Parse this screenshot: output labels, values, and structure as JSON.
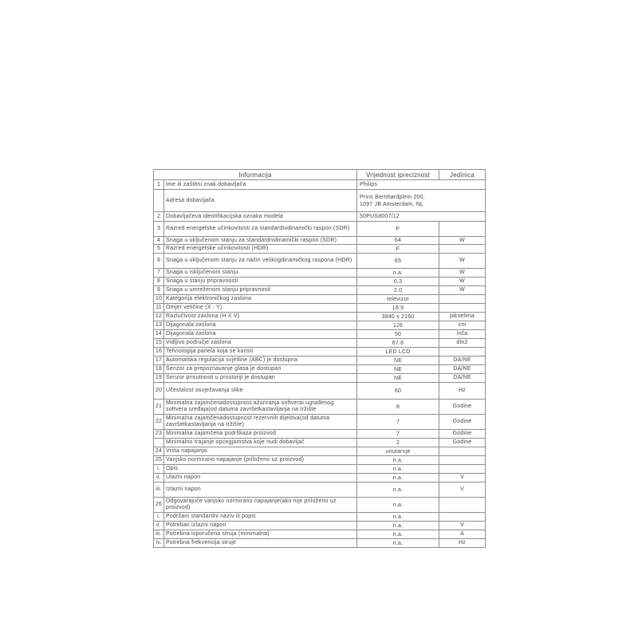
{
  "table": {
    "headers": {
      "info": "Informacija",
      "value": "Vrijednost ipreciznost",
      "unit": "Jedinica"
    },
    "rows": [
      {
        "num": "1",
        "label": "Ime ili zaštitni znak dobavljača",
        "value": "Philips",
        "unit": "",
        "merged": true
      },
      {
        "num": "",
        "label": "Adresa dobavljača",
        "value": "Prins Bernhardplein 200,\n1097 JB Amsterdam, NL",
        "unit": "",
        "merged": true
      },
      {
        "num": "2",
        "label": "Dobavljačeva identifikacijska oznaka modela",
        "value": "50PUS8007/12",
        "unit": "",
        "merged": true
      },
      {
        "num": "3",
        "label": "Razred energetske učinkovitosti za standardnidinamički raspon (SDR)",
        "value": "F",
        "unit": ""
      },
      {
        "num": "4",
        "label": "Snaga u uključenom stanju za standardnidinamički raspon (SDR)",
        "value": "64",
        "unit": "W"
      },
      {
        "num": "5",
        "label": "Razred energetske učinkovitosti (HDR)",
        "value": "F",
        "unit": ""
      },
      {
        "num": "6",
        "label": "Snaga u uključenom stanju za način velikogdinamičkog raspona (HDR)",
        "value": "65",
        "unit": "W"
      },
      {
        "num": "7",
        "label": "Snaga u isključenom stanju",
        "value": "n.a.",
        "unit": "W"
      },
      {
        "num": "8",
        "label": "Snaga u stanju pripravnosti",
        "value": "0.3",
        "unit": "W"
      },
      {
        "num": "9",
        "label": "Snaga u umreženom stanju pripravnosti",
        "value": "2.0",
        "unit": "W"
      },
      {
        "num": "10",
        "label": "Kategorija elektroničkog zaslona",
        "value": "televizor",
        "unit": ""
      },
      {
        "num": "11",
        "label": "Omjer veličine (X : Y)",
        "value": "16:9",
        "unit": ""
      },
      {
        "num": "12",
        "label": "Razlučivost zaslona (H X V)",
        "value": "3840 x 2160",
        "unit": "pikselima"
      },
      {
        "num": "13",
        "label": "Dijagonala zaslona",
        "value": "126",
        "unit": "cm"
      },
      {
        "num": "14",
        "label": "Dijagonala zaslona",
        "value": "50",
        "unit": "inča"
      },
      {
        "num": "15",
        "label": "Vidljivo područje zaslona",
        "value": "67.6",
        "unit": "dm2"
      },
      {
        "num": "16",
        "label": "Tehnologija panela koja se koristi",
        "value": "LED LCD",
        "unit": ""
      },
      {
        "num": "17",
        "label": "Automatska regulacija svjetline (ABC) je dostupna",
        "value": "NE",
        "unit": "DA/NE"
      },
      {
        "num": "18",
        "label": "Senzor za prepoznavanje glasa je dostupan",
        "value": "NE",
        "unit": "DA/NE"
      },
      {
        "num": "19",
        "label": "Senzor prisutnosti u prostoriji je dostupan",
        "value": "NE",
        "unit": "DA/NE"
      },
      {
        "num": "20",
        "label": "Učestalost osvježavanja slike",
        "value": "60",
        "unit": "Hz"
      },
      {
        "num": "21",
        "label": "Minimalna zajamčenadostupnost ažuriranja softverai ugrađenog softvera uređaja(od datuma završetkastavljanja na tržište",
        "value": "8",
        "unit": "Godine"
      },
      {
        "num": "22",
        "label": "Minimalna zajamčenadostupnost rezervnih dijelova(od datuma završetkastavljanja na tržište)",
        "value": "7",
        "unit": "Godine"
      },
      {
        "num": "23",
        "label": "Minimalna zajamčena podrškaza proizvod",
        "value": "7",
        "unit": "Godine"
      },
      {
        "num": "",
        "label": "Minimalno trajanje općegjamstva koje nudi dobavljač",
        "value": "2",
        "unit": "Godine"
      },
      {
        "num": "24",
        "label": "Vrsta napajanja:",
        "value": "unutarnje",
        "unit": ""
      },
      {
        "num": "25",
        "label": "Vanjsko normirano napajanje (priloženo uz proizvod)",
        "value": "n.a.",
        "unit": ""
      },
      {
        "num": "i.",
        "label": "Opis",
        "value": "n.a.",
        "unit": ""
      },
      {
        "num": "ii.",
        "label": "Ulazni napon",
        "value": "n.a.",
        "unit": "V"
      },
      {
        "num": "iii.",
        "label": "Izlazni napon",
        "value": "n.a.",
        "unit": "V"
      },
      {
        "num": "26",
        "label": "Odgovarajuće vanjsko normirano napajanje(ako nije priloženo uz proizvod)",
        "value": "n.a.",
        "unit": ""
      },
      {
        "num": "i.",
        "label": "Podržani standardni naziv ili popis",
        "value": "n.a.",
        "unit": ""
      },
      {
        "num": "ii.",
        "label": "Potreban izlazni napon",
        "value": "n.a.",
        "unit": "V"
      },
      {
        "num": "iii.",
        "label": "Potrebna isporučena struja (minimalna)",
        "value": "n.a.",
        "unit": "A"
      },
      {
        "num": "iv.",
        "label": "Potrebna frekvencija struje",
        "value": "n.a.",
        "unit": "Hz"
      }
    ]
  }
}
